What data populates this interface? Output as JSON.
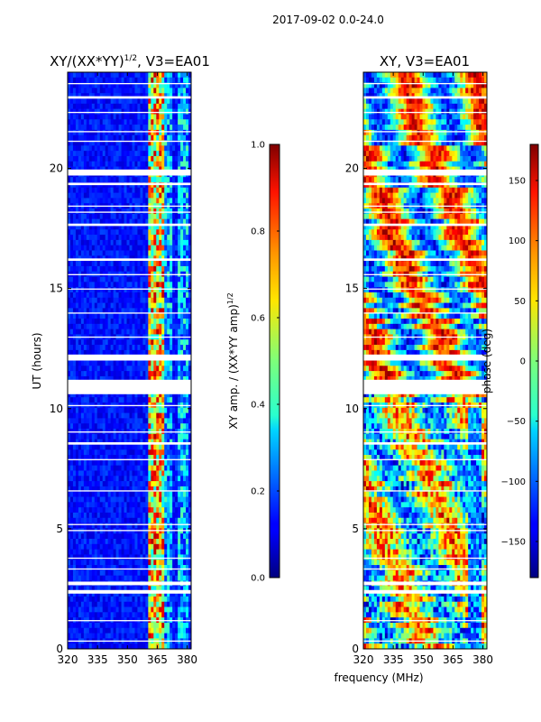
{
  "suptitle": "2017-09-02 0.0-24.0",
  "chart_data": [
    {
      "type": "heatmap",
      "title": "XY/(XX*YY)",
      "title_exponent": "1/2",
      "title_suffix": ", V3=EA01",
      "xlabel": "",
      "ylabel": "UT (hours)",
      "xlim": [
        320,
        382
      ],
      "ylim": [
        0,
        24
      ],
      "xticks": [
        "320",
        "335",
        "350",
        "365",
        "380"
      ],
      "xtick_values": [
        320,
        335,
        350,
        365,
        380
      ],
      "yticks": [
        "0",
        "5",
        "10",
        "15",
        "20"
      ],
      "ytick_values": [
        0,
        5,
        10,
        15,
        20
      ],
      "colormap": "jet",
      "colorbar": {
        "label": "XY amp. / (XX*YY amp)",
        "label_exponent": "1/2",
        "range": [
          0.0,
          1.0
        ],
        "ticks": [
          "0.0",
          "0.2",
          "0.4",
          "0.6",
          "0.8",
          "1.0"
        ],
        "tick_values": [
          0.0,
          0.2,
          0.4,
          0.6,
          0.8,
          1.0
        ]
      },
      "bright_channels_mhz": [
        [
          360,
          368
        ],
        [
          369,
          373
        ],
        [
          375,
          381
        ]
      ],
      "gaps_hours": [
        [
          0.3,
          0.35
        ],
        [
          1.15,
          1.2
        ],
        [
          2.3,
          2.45
        ],
        [
          2.65,
          2.8
        ],
        [
          3.3,
          3.35
        ],
        [
          3.75,
          3.8
        ],
        [
          4.9,
          4.95
        ],
        [
          5.15,
          5.2
        ],
        [
          6.55,
          6.6
        ],
        [
          7.85,
          7.9
        ],
        [
          8.5,
          8.6
        ],
        [
          9.0,
          9.05
        ],
        [
          10.1,
          10.15
        ],
        [
          10.6,
          11.2
        ],
        [
          12.0,
          12.25
        ],
        [
          12.95,
          13.0
        ],
        [
          13.95,
          14.0
        ],
        [
          14.95,
          15.0
        ],
        [
          15.55,
          15.6
        ],
        [
          16.15,
          16.25
        ],
        [
          17.6,
          17.7
        ],
        [
          18.15,
          18.2
        ],
        [
          18.4,
          18.45
        ],
        [
          19.3,
          19.4
        ],
        [
          19.7,
          19.95
        ],
        [
          21.1,
          21.15
        ],
        [
          21.5,
          21.55
        ],
        [
          22.3,
          22.35
        ],
        [
          22.9,
          23.0
        ],
        [
          23.5,
          23.55
        ]
      ]
    },
    {
      "type": "heatmap",
      "title": "XY, V3=EA01",
      "xlabel": "frequency (MHz)",
      "ylabel": "",
      "xlim": [
        320,
        382
      ],
      "ylim": [
        0,
        24
      ],
      "xticks": [
        "320",
        "335",
        "350",
        "365",
        "380"
      ],
      "xtick_values": [
        320,
        335,
        350,
        365,
        380
      ],
      "yticks": [
        "0",
        "5",
        "10",
        "15",
        "20"
      ],
      "ytick_values": [
        0,
        5,
        10,
        15,
        20
      ],
      "colormap": "jet",
      "colorbar": {
        "label": "phase (deg)",
        "range": [
          -180,
          180
        ],
        "ticks": [
          "−150",
          "−100",
          "−50",
          "0",
          "50",
          "100",
          "150"
        ],
        "tick_values": [
          -150,
          -100,
          -50,
          0,
          50,
          100,
          150
        ]
      },
      "gaps_hours": [
        [
          0.3,
          0.35
        ],
        [
          1.15,
          1.2
        ],
        [
          2.3,
          2.45
        ],
        [
          2.65,
          2.8
        ],
        [
          3.3,
          3.35
        ],
        [
          3.75,
          3.8
        ],
        [
          4.9,
          4.95
        ],
        [
          5.15,
          5.2
        ],
        [
          6.55,
          6.6
        ],
        [
          7.85,
          7.9
        ],
        [
          8.5,
          8.6
        ],
        [
          9.0,
          9.05
        ],
        [
          10.1,
          10.15
        ],
        [
          10.6,
          11.2
        ],
        [
          12.0,
          12.25
        ],
        [
          12.95,
          13.0
        ],
        [
          13.95,
          14.0
        ],
        [
          14.95,
          15.0
        ],
        [
          15.55,
          15.6
        ],
        [
          16.15,
          16.25
        ],
        [
          17.6,
          17.7
        ],
        [
          18.15,
          18.2
        ],
        [
          18.4,
          18.45
        ],
        [
          19.3,
          19.4
        ],
        [
          19.7,
          19.95
        ],
        [
          21.1,
          21.15
        ],
        [
          21.5,
          21.55
        ],
        [
          22.3,
          22.35
        ],
        [
          22.9,
          23.0
        ],
        [
          23.5,
          23.55
        ]
      ]
    }
  ]
}
